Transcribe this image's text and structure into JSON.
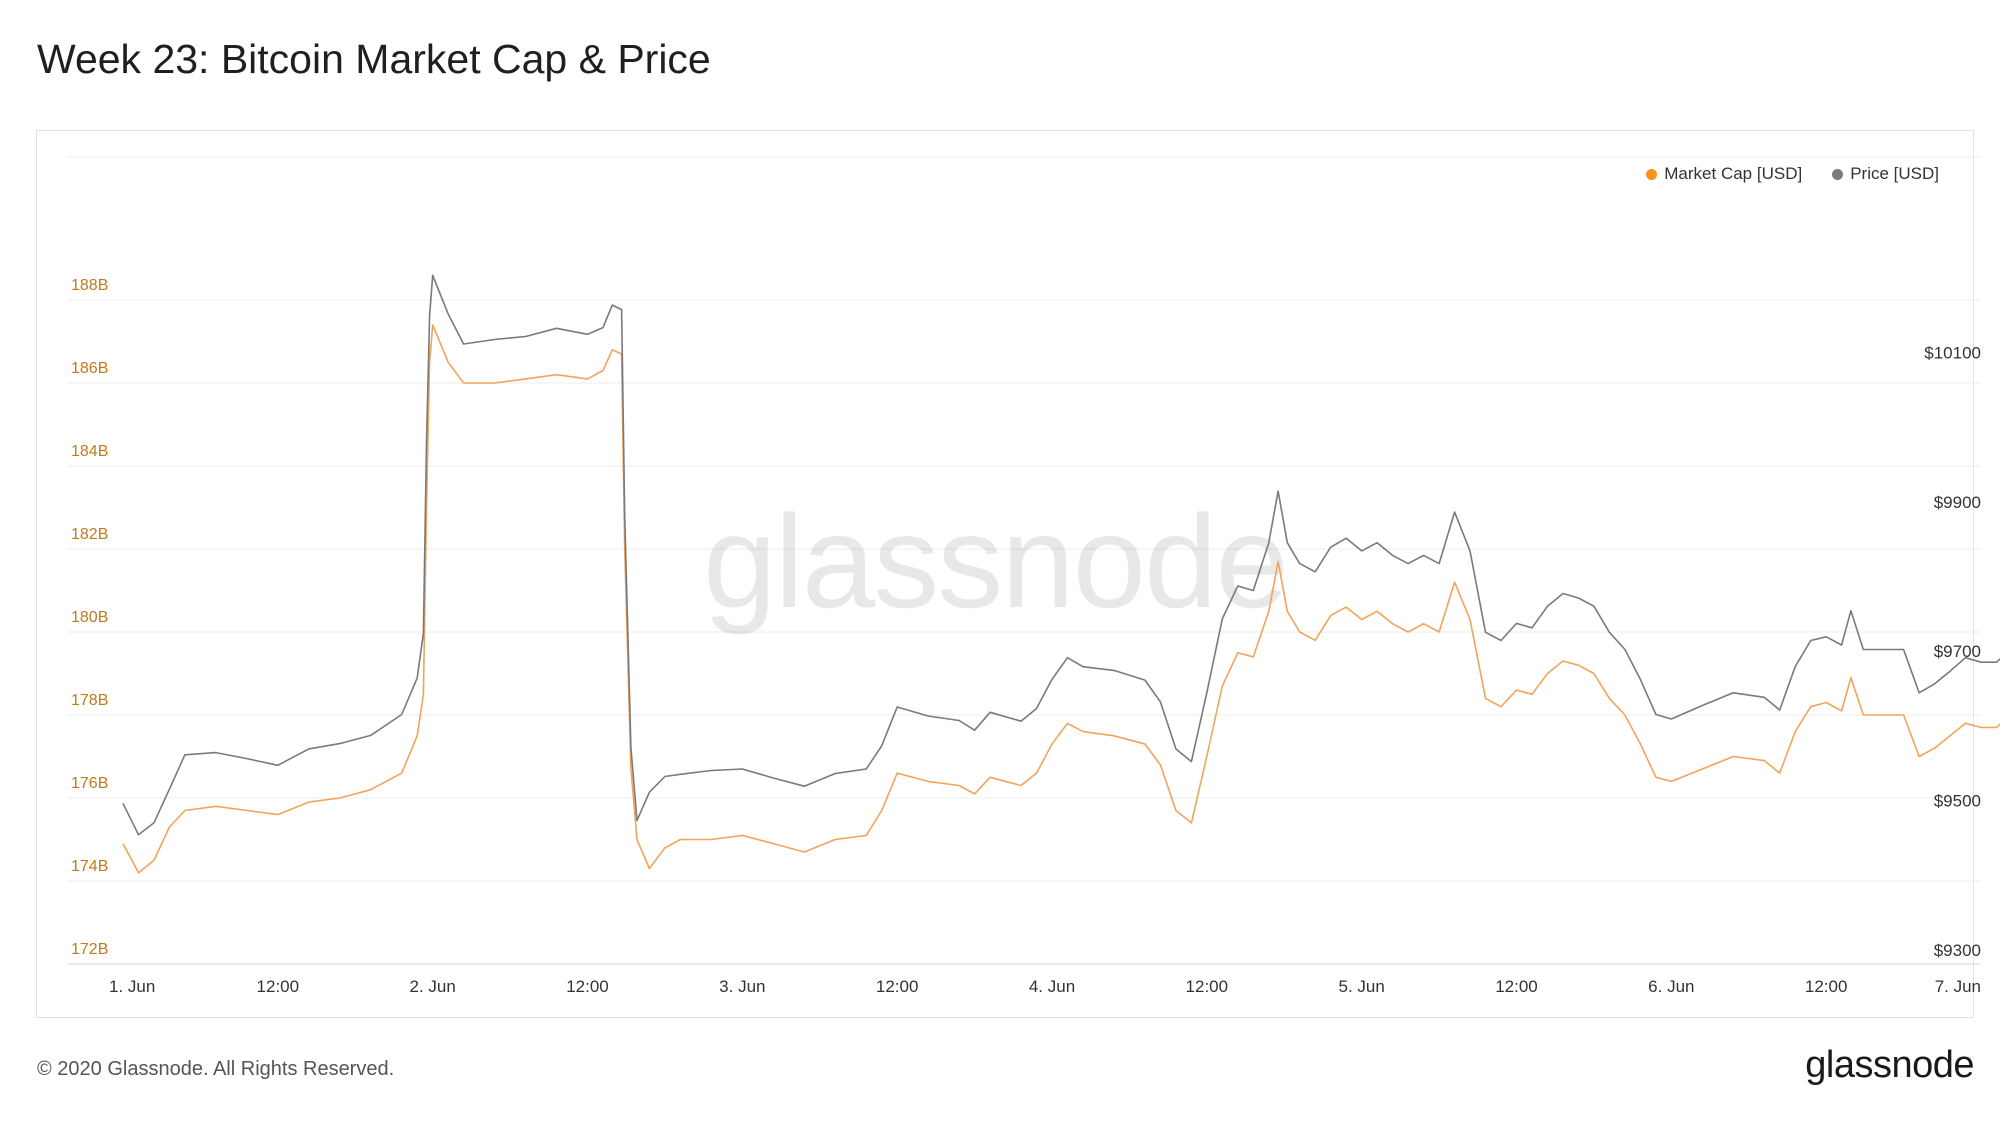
{
  "page": {
    "title": "Week 23: Bitcoin Market Cap & Price",
    "footer_copyright": "© 2020 Glassnode. All Rights Reserved.",
    "footer_logo": "glassnode",
    "watermark": "glassnode"
  },
  "colors": {
    "market_cap": "#f7931a",
    "market_cap_line": "#f2a45a",
    "price": "#7a7a7a",
    "left_axis_text": "#c27a1e",
    "grid": "#ececec"
  },
  "chart_data": {
    "type": "line",
    "title": "Week 23: Bitcoin Market Cap & Price",
    "x_ticks": [
      "1. Jun",
      "12:00",
      "2. Jun",
      "12:00",
      "3. Jun",
      "12:00",
      "4. Jun",
      "12:00",
      "5. Jun",
      "12:00",
      "6. Jun",
      "12:00",
      "7. Jun"
    ],
    "x_range_days": [
      0,
      6
    ],
    "y_left": {
      "ticks": [
        "172B",
        "174B",
        "176B",
        "178B",
        "180B",
        "182B",
        "184B",
        "186B",
        "188B"
      ],
      "range": [
        172,
        190
      ],
      "unit": "B USD"
    },
    "y_right": {
      "ticks": [
        "$9300",
        "$9500",
        "$9700",
        "$9900",
        "$10100"
      ],
      "range": [
        9300,
        10300
      ],
      "unit": "USD"
    },
    "legend_placement": "top-right",
    "grid": true,
    "series": [
      {
        "name": "Market Cap [USD]",
        "axis": "left",
        "points": [
          [
            0.0,
            174.9
          ],
          [
            0.05,
            174.2
          ],
          [
            0.1,
            174.5
          ],
          [
            0.15,
            175.3
          ],
          [
            0.2,
            175.7
          ],
          [
            0.3,
            175.8
          ],
          [
            0.4,
            175.7
          ],
          [
            0.5,
            175.6
          ],
          [
            0.6,
            175.9
          ],
          [
            0.7,
            176.0
          ],
          [
            0.8,
            176.2
          ],
          [
            0.9,
            176.6
          ],
          [
            0.95,
            177.5
          ],
          [
            0.97,
            178.5
          ],
          [
            0.98,
            183.0
          ],
          [
            0.99,
            186.5
          ],
          [
            1.0,
            187.4
          ],
          [
            1.05,
            186.5
          ],
          [
            1.1,
            186.0
          ],
          [
            1.2,
            186.0
          ],
          [
            1.3,
            186.1
          ],
          [
            1.4,
            186.2
          ],
          [
            1.5,
            186.1
          ],
          [
            1.55,
            186.3
          ],
          [
            1.58,
            186.8
          ],
          [
            1.61,
            186.7
          ],
          [
            1.62,
            182.0
          ],
          [
            1.64,
            176.7
          ],
          [
            1.66,
            175.0
          ],
          [
            1.7,
            174.3
          ],
          [
            1.75,
            174.8
          ],
          [
            1.8,
            175.0
          ],
          [
            1.9,
            175.0
          ],
          [
            2.0,
            175.1
          ],
          [
            2.1,
            174.9
          ],
          [
            2.2,
            174.7
          ],
          [
            2.3,
            175.0
          ],
          [
            2.4,
            175.1
          ],
          [
            2.45,
            175.7
          ],
          [
            2.5,
            176.6
          ],
          [
            2.6,
            176.4
          ],
          [
            2.7,
            176.3
          ],
          [
            2.75,
            176.1
          ],
          [
            2.8,
            176.5
          ],
          [
            2.9,
            176.3
          ],
          [
            2.95,
            176.6
          ],
          [
            3.0,
            177.3
          ],
          [
            3.05,
            177.8
          ],
          [
            3.1,
            177.6
          ],
          [
            3.2,
            177.5
          ],
          [
            3.3,
            177.3
          ],
          [
            3.35,
            176.8
          ],
          [
            3.4,
            175.7
          ],
          [
            3.45,
            175.4
          ],
          [
            3.5,
            177.0
          ],
          [
            3.55,
            178.7
          ],
          [
            3.6,
            179.5
          ],
          [
            3.65,
            179.4
          ],
          [
            3.7,
            180.5
          ],
          [
            3.73,
            181.7
          ],
          [
            3.76,
            180.5
          ],
          [
            3.8,
            180.0
          ],
          [
            3.85,
            179.8
          ],
          [
            3.9,
            180.4
          ],
          [
            3.95,
            180.6
          ],
          [
            4.0,
            180.3
          ],
          [
            4.05,
            180.5
          ],
          [
            4.1,
            180.2
          ],
          [
            4.15,
            180.0
          ],
          [
            4.2,
            180.2
          ],
          [
            4.25,
            180.0
          ],
          [
            4.3,
            181.2
          ],
          [
            4.35,
            180.3
          ],
          [
            4.4,
            178.4
          ],
          [
            4.45,
            178.2
          ],
          [
            4.5,
            178.6
          ],
          [
            4.55,
            178.5
          ],
          [
            4.6,
            179.0
          ],
          [
            4.65,
            179.3
          ],
          [
            4.7,
            179.2
          ],
          [
            4.75,
            179.0
          ],
          [
            4.8,
            178.4
          ],
          [
            4.85,
            178.0
          ],
          [
            4.9,
            177.3
          ],
          [
            4.95,
            176.5
          ],
          [
            5.0,
            176.4
          ],
          [
            5.1,
            176.7
          ],
          [
            5.2,
            177.0
          ],
          [
            5.3,
            176.9
          ],
          [
            5.35,
            176.6
          ],
          [
            5.4,
            177.6
          ],
          [
            5.45,
            178.2
          ],
          [
            5.5,
            178.3
          ],
          [
            5.55,
            178.1
          ],
          [
            5.58,
            178.9
          ],
          [
            5.62,
            178.0
          ],
          [
            5.7,
            178.0
          ],
          [
            5.75,
            178.0
          ],
          [
            5.8,
            177.0
          ],
          [
            5.85,
            177.2
          ],
          [
            5.9,
            177.5
          ],
          [
            5.95,
            177.8
          ],
          [
            6.0,
            177.7
          ],
          [
            6.05,
            177.7
          ],
          [
            6.1,
            177.9
          ]
        ]
      },
      {
        "name": "Price [USD]",
        "axis": "right",
        "points": [
          [
            0.0,
            9515
          ],
          [
            0.05,
            9473
          ],
          [
            0.1,
            9489
          ],
          [
            0.15,
            9534
          ],
          [
            0.2,
            9580
          ],
          [
            0.3,
            9583
          ],
          [
            0.4,
            9575
          ],
          [
            0.5,
            9566
          ],
          [
            0.6,
            9588
          ],
          [
            0.7,
            9595
          ],
          [
            0.8,
            9606
          ],
          [
            0.9,
            9634
          ],
          [
            0.95,
            9683
          ],
          [
            0.97,
            9743
          ],
          [
            0.98,
            9998
          ],
          [
            0.99,
            10168
          ],
          [
            1.0,
            10222
          ],
          [
            1.05,
            10170
          ],
          [
            1.1,
            10130
          ],
          [
            1.2,
            10136
          ],
          [
            1.3,
            10140
          ],
          [
            1.4,
            10151
          ],
          [
            1.5,
            10143
          ],
          [
            1.55,
            10152
          ],
          [
            1.58,
            10182
          ],
          [
            1.61,
            10176
          ],
          [
            1.62,
            9900
          ],
          [
            1.64,
            9590
          ],
          [
            1.66,
            9492
          ],
          [
            1.7,
            9530
          ],
          [
            1.75,
            9551
          ],
          [
            1.8,
            9554
          ],
          [
            1.9,
            9559
          ],
          [
            2.0,
            9561
          ],
          [
            2.1,
            9549
          ],
          [
            2.2,
            9538
          ],
          [
            2.3,
            9555
          ],
          [
            2.4,
            9561
          ],
          [
            2.45,
            9592
          ],
          [
            2.5,
            9644
          ],
          [
            2.6,
            9632
          ],
          [
            2.7,
            9626
          ],
          [
            2.75,
            9613
          ],
          [
            2.8,
            9637
          ],
          [
            2.9,
            9625
          ],
          [
            2.95,
            9642
          ],
          [
            3.0,
            9681
          ],
          [
            3.05,
            9710
          ],
          [
            3.1,
            9698
          ],
          [
            3.2,
            9693
          ],
          [
            3.3,
            9680
          ],
          [
            3.35,
            9651
          ],
          [
            3.4,
            9588
          ],
          [
            3.45,
            9571
          ],
          [
            3.5,
            9663
          ],
          [
            3.55,
            9762
          ],
          [
            3.6,
            9806
          ],
          [
            3.65,
            9800
          ],
          [
            3.7,
            9864
          ],
          [
            3.73,
            9933
          ],
          [
            3.76,
            9864
          ],
          [
            3.8,
            9836
          ],
          [
            3.85,
            9825
          ],
          [
            3.9,
            9858
          ],
          [
            3.95,
            9870
          ],
          [
            4.0,
            9853
          ],
          [
            4.05,
            9864
          ],
          [
            4.1,
            9847
          ],
          [
            4.15,
            9836
          ],
          [
            4.2,
            9847
          ],
          [
            4.25,
            9836
          ],
          [
            4.3,
            9905
          ],
          [
            4.35,
            9853
          ],
          [
            4.4,
            9744
          ],
          [
            4.45,
            9733
          ],
          [
            4.5,
            9756
          ],
          [
            4.55,
            9750
          ],
          [
            4.6,
            9779
          ],
          [
            4.65,
            9796
          ],
          [
            4.7,
            9790
          ],
          [
            4.75,
            9779
          ],
          [
            4.8,
            9744
          ],
          [
            4.85,
            9721
          ],
          [
            4.9,
            9681
          ],
          [
            4.95,
            9634
          ],
          [
            5.0,
            9628
          ],
          [
            5.1,
            9646
          ],
          [
            5.2,
            9663
          ],
          [
            5.3,
            9657
          ],
          [
            5.35,
            9640
          ],
          [
            5.4,
            9698
          ],
          [
            5.45,
            9733
          ],
          [
            5.5,
            9738
          ],
          [
            5.55,
            9727
          ],
          [
            5.58,
            9773
          ],
          [
            5.62,
            9721
          ],
          [
            5.7,
            9721
          ],
          [
            5.75,
            9721
          ],
          [
            5.8,
            9663
          ],
          [
            5.85,
            9675
          ],
          [
            5.9,
            9692
          ],
          [
            5.95,
            9710
          ],
          [
            6.0,
            9704
          ],
          [
            6.05,
            9704
          ],
          [
            6.1,
            9715
          ]
        ]
      }
    ]
  }
}
